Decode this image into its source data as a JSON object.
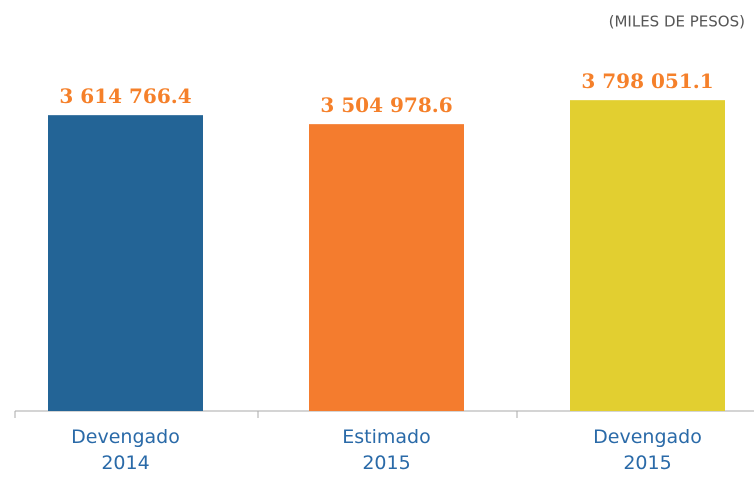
{
  "chart_data": {
    "type": "bar",
    "subtitle": "(MILES DE PESOS)",
    "categories": [
      "Devengado 2014",
      "Estimado 2015",
      "Devengado 2015"
    ],
    "values": [
      3614766.4,
      3504978.6,
      3798051.1
    ],
    "value_labels": [
      "3 614 766.4",
      "3 504 978.6",
      "3 798 051.1"
    ],
    "colors": [
      "#236496",
      "#f47c2e",
      "#e2cf30"
    ],
    "ylim": [
      0,
      3800000
    ]
  }
}
